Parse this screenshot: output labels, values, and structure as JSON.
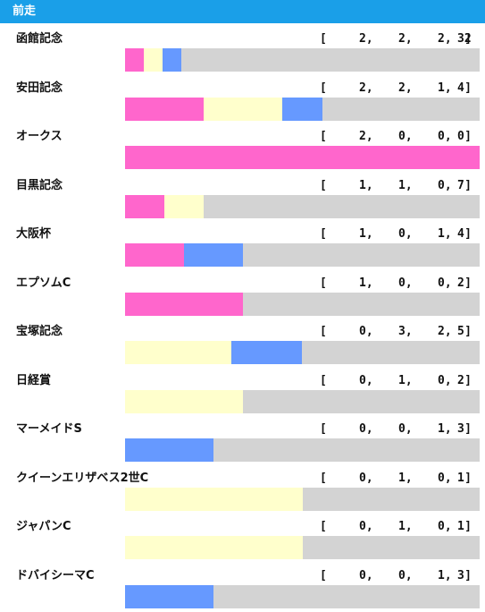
{
  "header": {
    "title": "前走"
  },
  "chart_data": {
    "type": "bar",
    "stacked": true,
    "orientation": "horizontal",
    "categories": [
      "函館記念",
      "安田記念",
      "オークス",
      "目黒記念",
      "大阪杯",
      "エプソムC",
      "宝塚記念",
      "日経賞",
      "マーメイドS",
      "クイーンエリザベス2世C",
      "ジャパンC",
      "ドバイシーマC"
    ],
    "series": [
      {
        "key": "first",
        "color": "#ff66cc",
        "values": [
          2,
          2,
          2,
          1,
          1,
          1,
          0,
          0,
          0,
          0,
          0,
          0
        ]
      },
      {
        "key": "second",
        "color": "#ffffcc",
        "values": [
          2,
          2,
          0,
          1,
          0,
          0,
          3,
          1,
          0,
          1,
          1,
          0
        ]
      },
      {
        "key": "third",
        "color": "#6699ff",
        "values": [
          2,
          1,
          0,
          0,
          1,
          0,
          2,
          0,
          1,
          0,
          0,
          1
        ]
      },
      {
        "key": "other",
        "color": "#d3d3d3",
        "values": [
          32,
          4,
          0,
          7,
          4,
          2,
          5,
          2,
          3,
          1,
          1,
          3
        ]
      }
    ],
    "legend": "none",
    "grid": false
  }
}
